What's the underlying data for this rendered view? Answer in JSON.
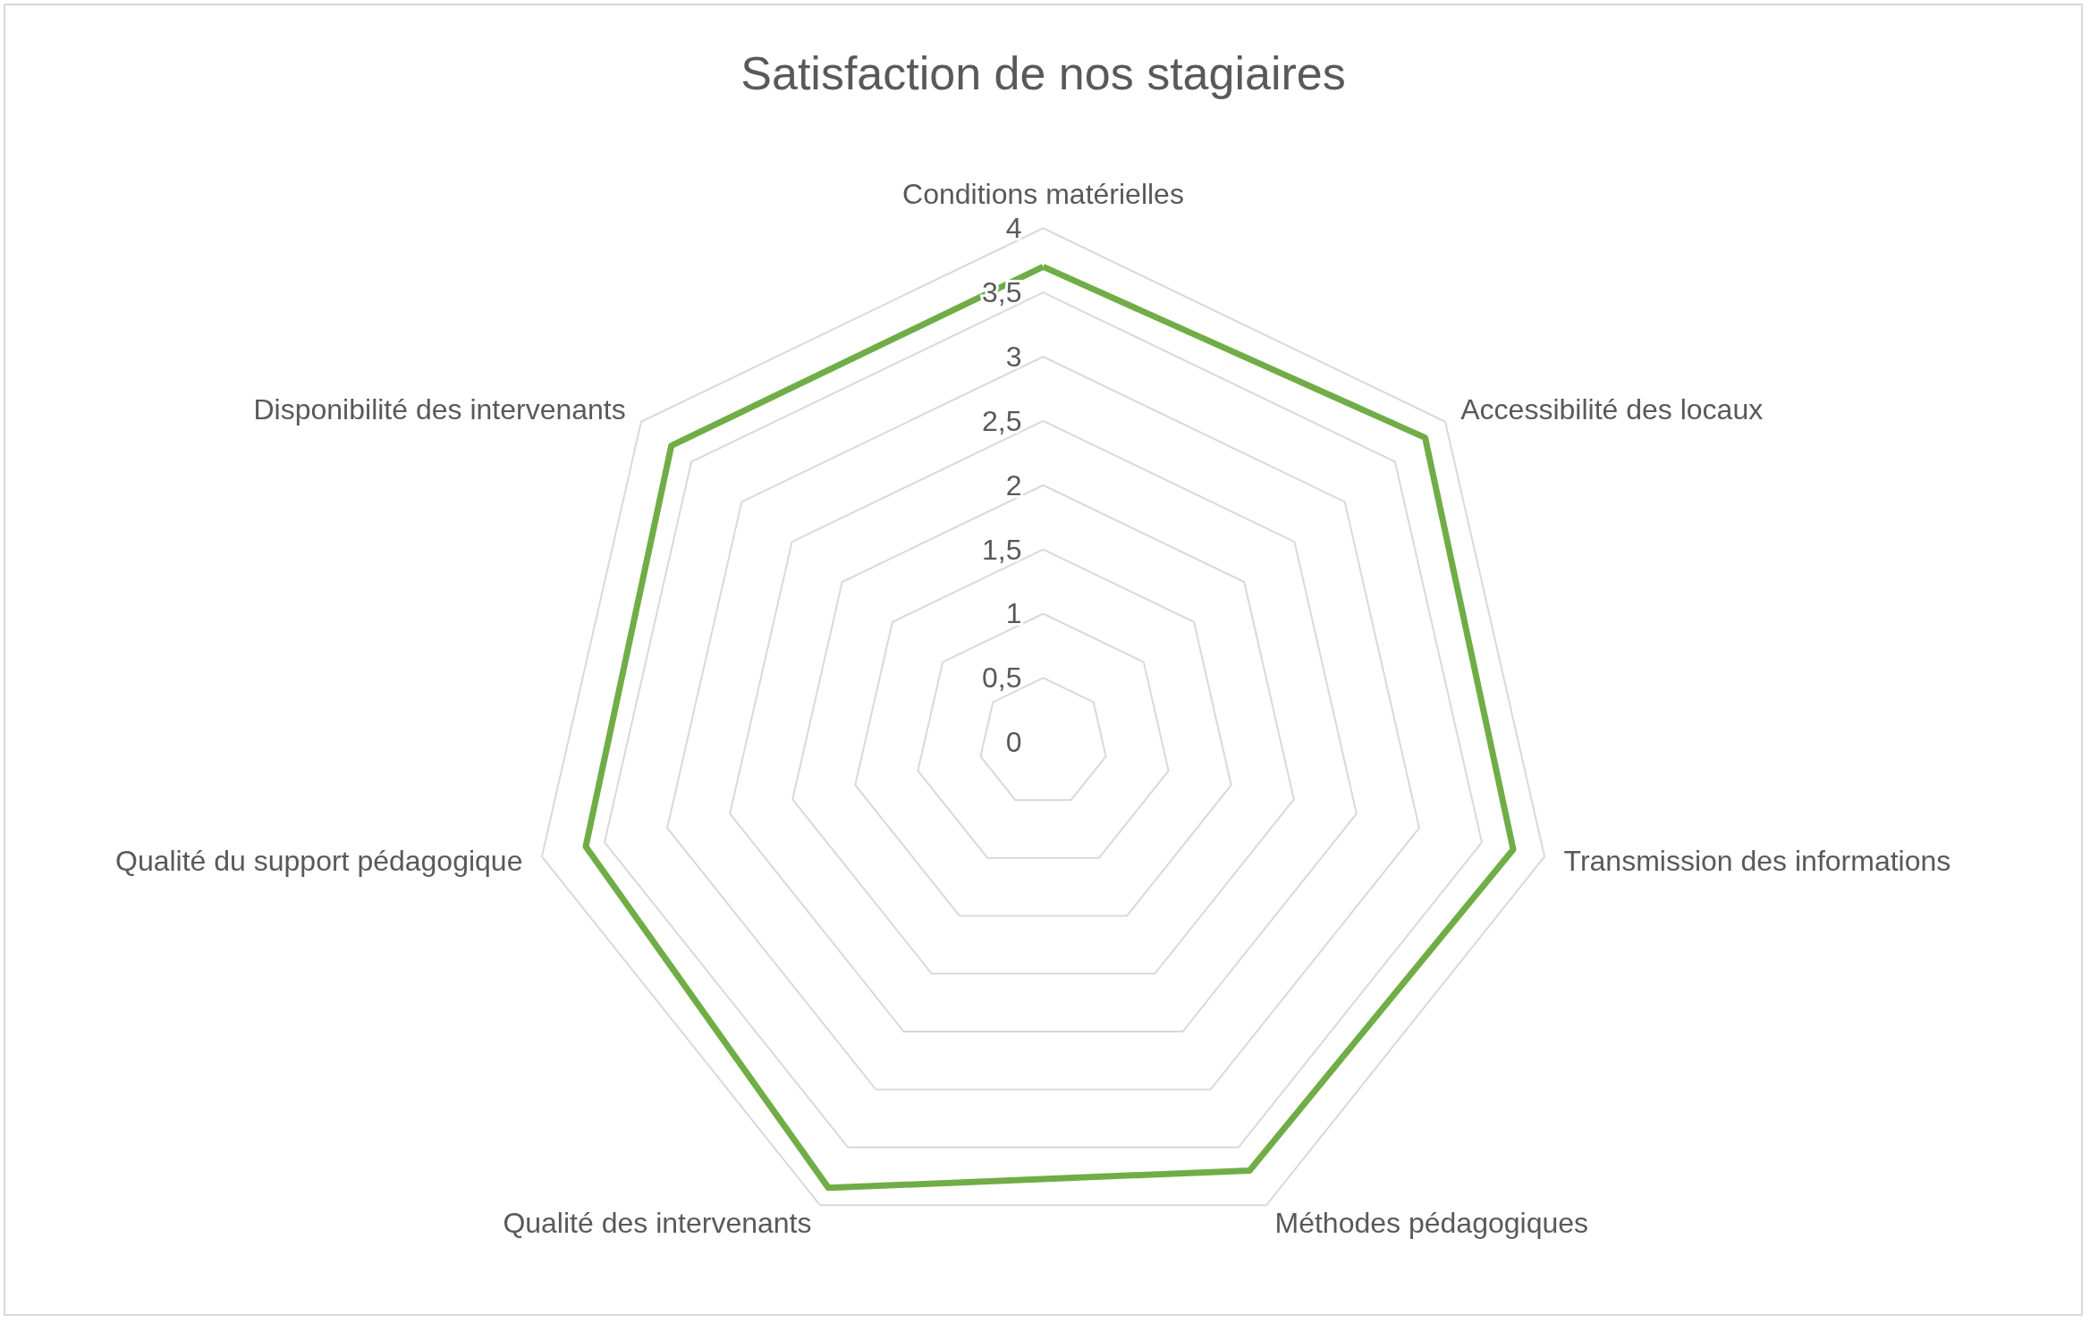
{
  "chart_data": {
    "type": "radar",
    "title": "Satisfaction de nos stagiaires",
    "categories": [
      "Conditions matérielles",
      "Accessibilité des locaux",
      "Transmission des informations",
      "Méthodes pédagogiques",
      "Qualité des intervenants",
      "Qualité du support pédagogique",
      "Disponibilité des intervenants"
    ],
    "series": [
      {
        "color": "#70ad47",
        "values": [
          3.7,
          3.8,
          3.75,
          3.7,
          3.85,
          3.65,
          3.7
        ]
      }
    ],
    "ylim": [
      0,
      4
    ],
    "yticks": [
      0,
      {
        "value": 0.5,
        "label": "0,5"
      },
      1,
      {
        "value": 1.5,
        "label": "1,5"
      },
      2,
      {
        "value": 2.5,
        "label": "2,5"
      },
      3,
      {
        "value": 3.5,
        "label": "3,5"
      },
      4
    ],
    "grid": true,
    "marker": "none",
    "line_style": "solid"
  }
}
